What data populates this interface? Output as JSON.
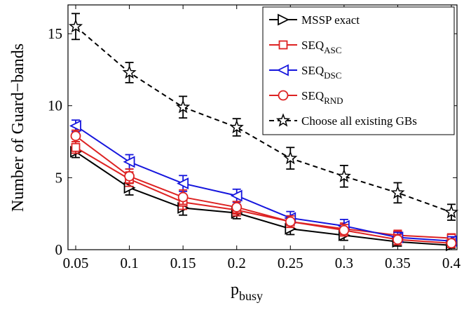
{
  "chart_data": {
    "type": "line",
    "xlabel": "p",
    "xlabel_sub": "busy",
    "ylabel": "Number of Guard−bands",
    "x": [
      0.05,
      0.1,
      0.15,
      0.2,
      0.25,
      0.3,
      0.35,
      0.4
    ],
    "x_tick_labels": [
      "0.05",
      "0.1",
      "0.15",
      "0.2",
      "0.25",
      "0.3",
      "0.35",
      "0.4"
    ],
    "y_ticks": [
      0,
      5,
      10,
      15
    ],
    "y_tick_labels": [
      "0",
      "5",
      "10",
      "15"
    ],
    "xlim": [
      0.05,
      0.4
    ],
    "ylim": [
      0,
      17
    ],
    "grid": false,
    "legend_position": "top-right",
    "series": [
      {
        "key": "mssp",
        "name": "MSSP exact",
        "color": "#000000",
        "line": "solid",
        "marker": "triangle-right",
        "values": [
          6.8,
          4.3,
          2.9,
          2.55,
          1.45,
          1.0,
          0.55,
          0.3
        ],
        "errors": [
          0.4,
          0.5,
          0.5,
          0.4,
          0.4,
          0.35,
          0.3,
          0.2
        ]
      },
      {
        "key": "asc",
        "name": "SEQ",
        "name_sub": "ASC",
        "color": "#dd2222",
        "line": "solid",
        "marker": "square",
        "values": [
          7.1,
          4.9,
          3.3,
          2.75,
          1.95,
          1.45,
          1.0,
          0.8
        ],
        "errors": [
          0.4,
          0.5,
          0.5,
          0.4,
          0.4,
          0.4,
          0.35,
          0.3
        ]
      },
      {
        "key": "dsc",
        "name": "SEQ",
        "name_sub": "DSC",
        "color": "#1515dd",
        "line": "solid",
        "marker": "triangle-left",
        "values": [
          8.6,
          6.1,
          4.6,
          3.75,
          2.2,
          1.65,
          0.85,
          0.6
        ],
        "errors": [
          0.4,
          0.5,
          0.55,
          0.45,
          0.45,
          0.45,
          0.35,
          0.3
        ]
      },
      {
        "key": "rnd",
        "name": "SEQ",
        "name_sub": "RND",
        "color": "#dd2222",
        "line": "solid",
        "marker": "circle",
        "values": [
          7.9,
          5.1,
          3.65,
          2.95,
          1.95,
          1.35,
          0.7,
          0.45
        ],
        "errors": [
          0.4,
          0.5,
          0.5,
          0.4,
          0.4,
          0.4,
          0.35,
          0.3
        ]
      },
      {
        "key": "all",
        "name": "Choose all existing GBs",
        "color": "#000000",
        "line": "dashed",
        "marker": "star",
        "values": [
          15.5,
          12.3,
          9.9,
          8.5,
          6.35,
          5.1,
          3.95,
          2.6
        ],
        "errors": [
          0.9,
          0.7,
          0.75,
          0.6,
          0.75,
          0.75,
          0.7,
          0.55
        ]
      }
    ]
  }
}
